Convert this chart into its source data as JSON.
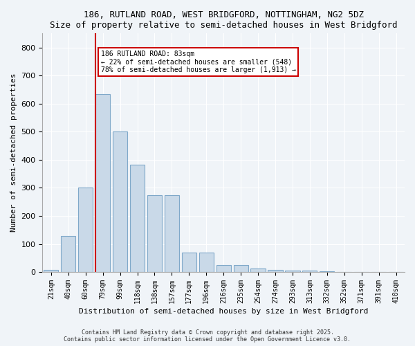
{
  "title1": "186, RUTLAND ROAD, WEST BRIDGFORD, NOTTINGHAM, NG2 5DZ",
  "title2": "Size of property relative to semi-detached houses in West Bridgford",
  "xlabel": "Distribution of semi-detached houses by size in West Bridgford",
  "ylabel": "Number of semi-detached properties",
  "bin_labels": [
    "21sqm",
    "40sqm",
    "60sqm",
    "79sqm",
    "99sqm",
    "118sqm",
    "138sqm",
    "157sqm",
    "177sqm",
    "196sqm",
    "216sqm",
    "235sqm",
    "254sqm",
    "274sqm",
    "293sqm",
    "313sqm",
    "332sqm",
    "352sqm",
    "371sqm",
    "391sqm",
    "410sqm"
  ],
  "bar_values": [
    8,
    128,
    300,
    635,
    500,
    383,
    275,
    275,
    70,
    70,
    25,
    25,
    12,
    8,
    5,
    5,
    3,
    0,
    0,
    0,
    0
  ],
  "bar_color": "#c9d9e8",
  "bar_edgecolor": "#7fa8c9",
  "ylim": [
    0,
    850
  ],
  "yticks": [
    0,
    100,
    200,
    300,
    400,
    500,
    600,
    700,
    800
  ],
  "property_sqm": 83,
  "property_bin_index": 3,
  "vline_color": "#cc0000",
  "annotation_title": "186 RUTLAND ROAD: 83sqm",
  "annotation_line1": "← 22% of semi-detached houses are smaller (548)",
  "annotation_line2": "78% of semi-detached houses are larger (1,913) →",
  "annotation_box_color": "#cc0000",
  "footer1": "Contains HM Land Registry data © Crown copyright and database right 2025.",
  "footer2": "Contains public sector information licensed under the Open Government Licence v3.0.",
  "bg_color": "#f0f4f8",
  "plot_bg_color": "#f0f4f8"
}
